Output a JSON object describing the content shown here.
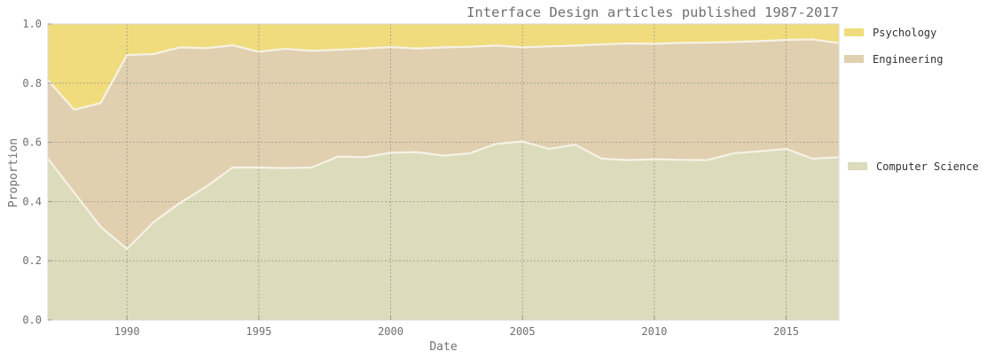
{
  "chart_data": {
    "type": "area",
    "stacked": true,
    "normalized": true,
    "title": "Interface Design articles published 1987-2017",
    "xlabel": "Date",
    "ylabel": "Proportion",
    "xlim": [
      1987,
      2017
    ],
    "ylim": [
      0.0,
      1.0
    ],
    "x_ticks": [
      1990,
      1995,
      2000,
      2005,
      2010,
      2015
    ],
    "x_tick_labels": [
      "1990",
      "1995",
      "2000",
      "2005",
      "2010",
      "2015"
    ],
    "y_ticks": [
      0.0,
      0.2,
      0.4,
      0.6,
      0.8,
      1.0
    ],
    "y_tick_labels": [
      "0.0",
      "0.2",
      "0.4",
      "0.6",
      "0.8",
      "1.0"
    ],
    "grid": true,
    "legend_position": "right",
    "x": [
      1987,
      1988,
      1989,
      1990,
      1991,
      1992,
      1993,
      1994,
      1995,
      1996,
      1997,
      1998,
      1999,
      2000,
      2001,
      2002,
      2003,
      2004,
      2005,
      2006,
      2007,
      2008,
      2009,
      2010,
      2011,
      2012,
      2013,
      2014,
      2015,
      2016,
      2017
    ],
    "series": [
      {
        "name": "Computer Science",
        "color": "#dcdcbc",
        "values": [
          0.545,
          0.43,
          0.315,
          0.24,
          0.33,
          0.395,
          0.45,
          0.515,
          0.515,
          0.513,
          0.515,
          0.552,
          0.55,
          0.565,
          0.567,
          0.555,
          0.563,
          0.595,
          0.603,
          0.578,
          0.592,
          0.545,
          0.54,
          0.543,
          0.541,
          0.54,
          0.563,
          0.57,
          0.578,
          0.545,
          0.55
        ]
      },
      {
        "name": "Engineering",
        "color": "#e0d0b0",
        "values": [
          0.265,
          0.28,
          0.418,
          0.655,
          0.568,
          0.526,
          0.468,
          0.413,
          0.391,
          0.403,
          0.394,
          0.361,
          0.367,
          0.357,
          0.35,
          0.366,
          0.36,
          0.332,
          0.318,
          0.346,
          0.335,
          0.386,
          0.394,
          0.39,
          0.395,
          0.397,
          0.376,
          0.372,
          0.368,
          0.403,
          0.385
        ]
      },
      {
        "name": "Psychology",
        "color": "#f0dc7c",
        "values": [
          0.19,
          0.29,
          0.267,
          0.105,
          0.102,
          0.079,
          0.082,
          0.072,
          0.094,
          0.084,
          0.091,
          0.087,
          0.083,
          0.078,
          0.083,
          0.079,
          0.077,
          0.073,
          0.079,
          0.076,
          0.073,
          0.069,
          0.066,
          0.067,
          0.064,
          0.063,
          0.061,
          0.058,
          0.054,
          0.052,
          0.065
        ]
      }
    ],
    "legend": [
      {
        "name": "Psychology",
        "color": "#f0dc7c"
      },
      {
        "name": "Engineering",
        "color": "#e0d0b0"
      },
      {
        "name": "Computer Science",
        "color": "#dcdcbc"
      }
    ]
  }
}
